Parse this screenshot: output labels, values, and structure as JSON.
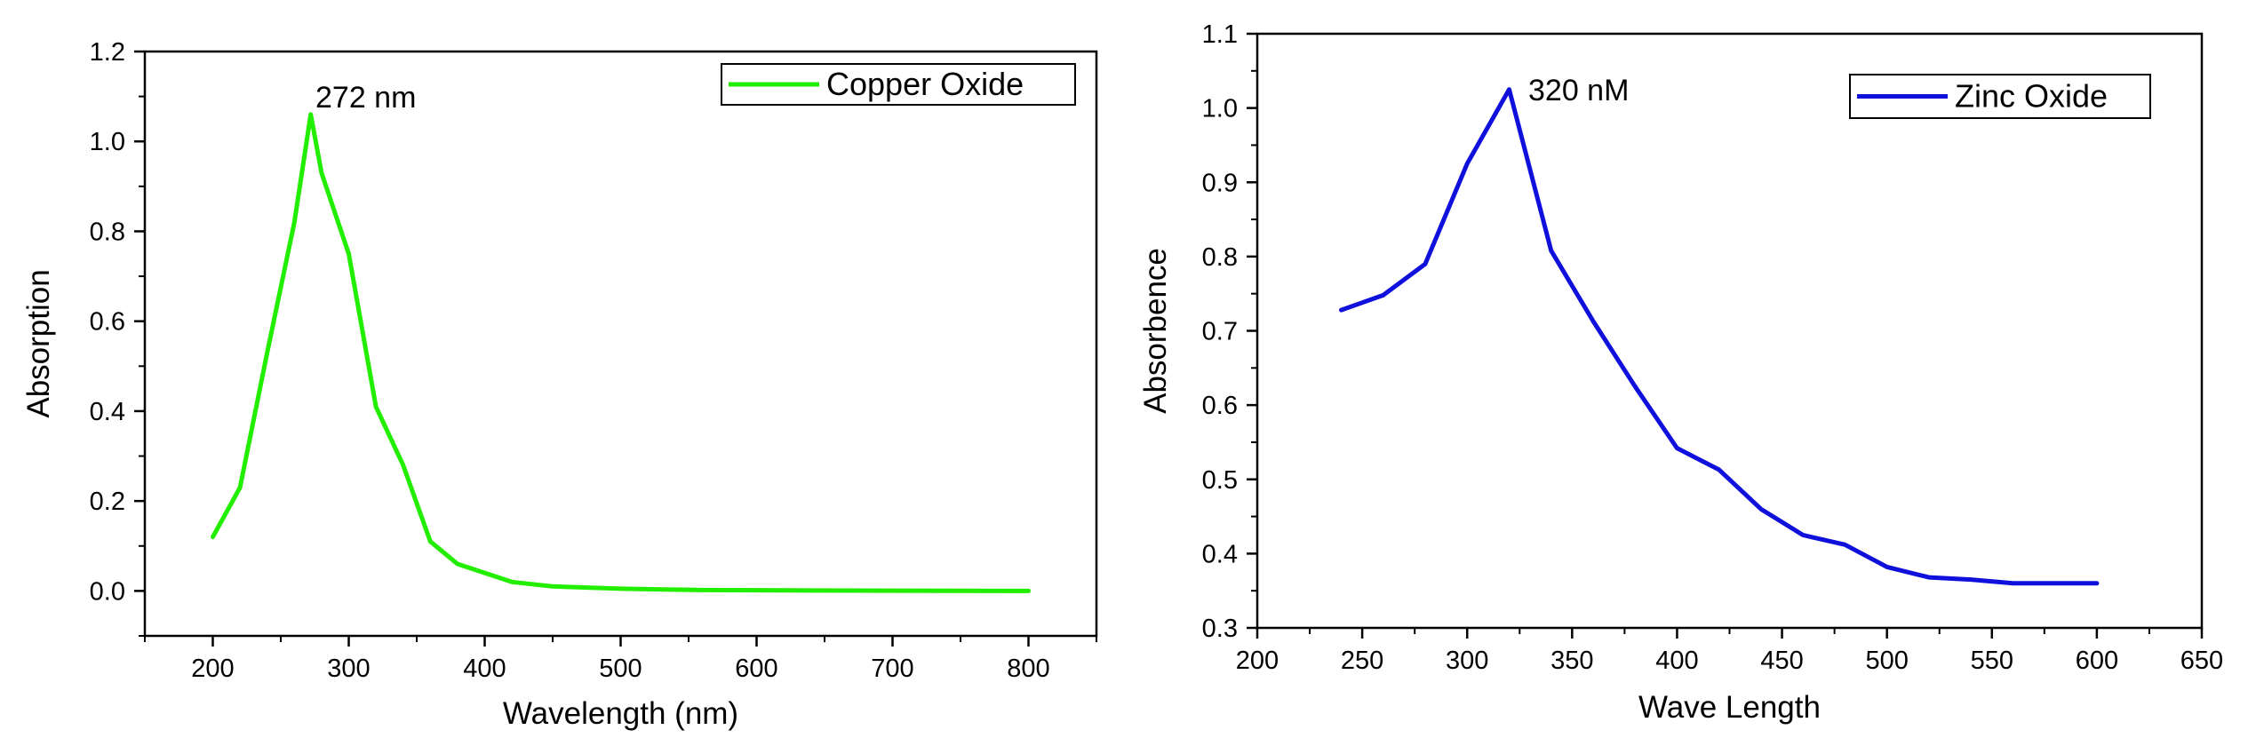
{
  "chart_data": [
    {
      "type": "line",
      "xlabel": "Wavelength (nm)",
      "ylabel": "Absorption",
      "xlim": [
        150,
        850
      ],
      "ylim": [
        -0.1,
        1.2
      ],
      "x_ticks": [
        "200",
        "300",
        "400",
        "500",
        "600",
        "700",
        "800"
      ],
      "y_ticks": [
        "0.0",
        "0.2",
        "0.4",
        "0.6",
        "0.8",
        "1.0",
        "1.2"
      ],
      "annotation": "272 nm",
      "legend_position": "top-right",
      "series": [
        {
          "name": "Copper Oxide",
          "color": "#22ee00",
          "x": [
            200,
            220,
            240,
            260,
            272,
            280,
            300,
            320,
            340,
            360,
            380,
            420,
            450,
            500,
            560,
            640,
            800
          ],
          "y": [
            0.12,
            0.23,
            0.53,
            0.82,
            1.06,
            0.93,
            0.75,
            0.41,
            0.28,
            0.11,
            0.06,
            0.02,
            0.01,
            0.005,
            0.002,
            0.001,
            0.0
          ]
        }
      ]
    },
    {
      "type": "line",
      "xlabel": "Wave Length",
      "ylabel": "Absorbence",
      "xlim": [
        200,
        650
      ],
      "ylim": [
        0.3,
        1.1
      ],
      "x_ticks": [
        "200",
        "250",
        "300",
        "350",
        "400",
        "450",
        "500",
        "550",
        "600",
        "650"
      ],
      "y_ticks": [
        "0.3",
        "0.4",
        "0.5",
        "0.6",
        "0.7",
        "0.8",
        "0.9",
        "1.0",
        "1.1"
      ],
      "annotation": "320 nM",
      "legend_position": "top-right",
      "series": [
        {
          "name": "Zinc Oxide",
          "color": "#1010dd",
          "x": [
            240,
            260,
            280,
            300,
            320,
            340,
            360,
            380,
            400,
            420,
            440,
            460,
            480,
            500,
            520,
            540,
            560,
            580,
            600
          ],
          "y": [
            0.728,
            0.748,
            0.79,
            0.925,
            1.025,
            0.808,
            0.713,
            0.625,
            0.542,
            0.513,
            0.46,
            0.425,
            0.412,
            0.382,
            0.368,
            0.365,
            0.36,
            0.36,
            0.36
          ]
        }
      ]
    }
  ]
}
